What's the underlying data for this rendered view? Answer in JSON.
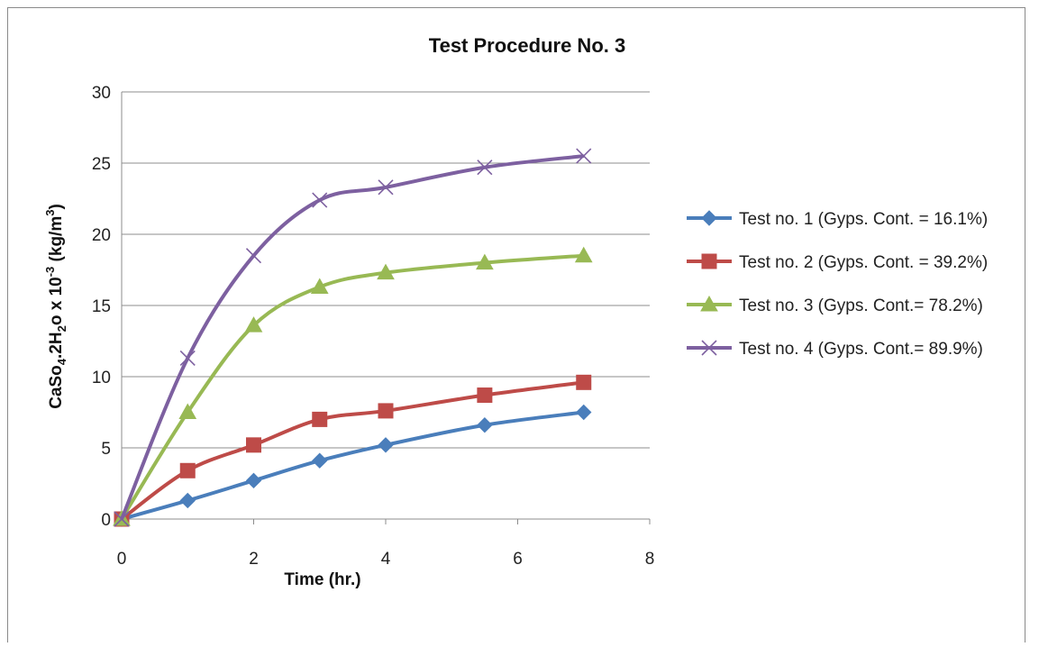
{
  "chart_data": {
    "type": "line",
    "title": "Test Procedure No. 3",
    "xlabel": "Time  (hr.)",
    "ylabel": "CaSo4.2H2o x 10-3 (kg/m3)",
    "xlim": [
      0,
      8
    ],
    "ylim": [
      0,
      30
    ],
    "xticks": [
      0,
      2,
      4,
      6,
      8
    ],
    "yticks": [
      0,
      5,
      10,
      15,
      20,
      25,
      30
    ],
    "grid": "horizontal",
    "legend_position": "right",
    "series": [
      {
        "name": "Test no. 1 (Gyps. Cont. = 16.1%)",
        "color": "#4a7ebb",
        "marker": "diamond",
        "x": [
          0,
          1,
          2,
          3,
          4,
          5.5,
          7
        ],
        "y": [
          0,
          1.3,
          2.7,
          4.1,
          5.2,
          6.6,
          7.5
        ]
      },
      {
        "name": "Test no. 2 (Gyps. Cont. = 39.2%)",
        "color": "#be4b48",
        "marker": "square",
        "x": [
          0,
          1,
          2,
          3,
          4,
          5.5,
          7
        ],
        "y": [
          0,
          3.4,
          5.2,
          7.0,
          7.6,
          8.7,
          9.6
        ]
      },
      {
        "name": "Test no. 3 (Gyps. Cont.= 78.2%)",
        "color": "#98b954",
        "marker": "triangle",
        "x": [
          0,
          1,
          2,
          3,
          4,
          5.5,
          7
        ],
        "y": [
          0,
          7.5,
          13.6,
          16.3,
          17.3,
          18.0,
          18.5
        ]
      },
      {
        "name": "Test no. 4 (Gyps. Cont.= 89.9%)",
        "color": "#7d60a0",
        "marker": "x",
        "x": [
          0,
          1,
          2,
          3,
          4,
          5.5,
          7
        ],
        "y": [
          0,
          11.3,
          18.5,
          22.4,
          23.3,
          24.7,
          25.5
        ]
      }
    ]
  }
}
